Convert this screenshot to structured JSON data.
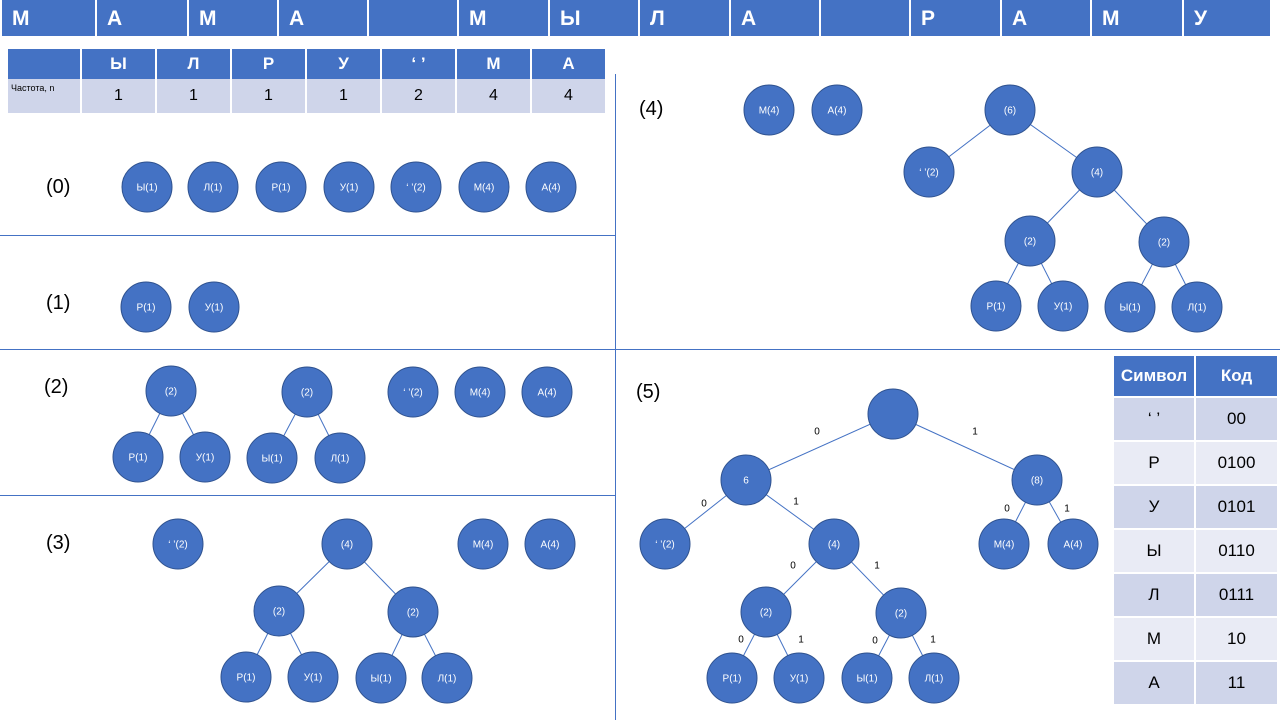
{
  "sequence": [
    "М",
    "А",
    "М",
    "А",
    "",
    "М",
    "Ы",
    "Л",
    "А",
    "",
    "Р",
    "А",
    "М",
    "У"
  ],
  "freq_table": {
    "header": [
      "",
      "Ы",
      "Л",
      "Р",
      "У",
      "‘ ’",
      "М",
      "А"
    ],
    "row_label": "Частота, n",
    "values": [
      "1",
      "1",
      "1",
      "1",
      "2",
      "4",
      "4"
    ]
  },
  "step_labels": [
    "(0)",
    "(1)",
    "(2)",
    "(3)",
    "(4)",
    "(5)"
  ],
  "steps": [
    {
      "nodes": [
        {
          "label": "Ы(1)"
        },
        {
          "label": "Л(1)"
        },
        {
          "label": "Р(1)"
        },
        {
          "label": "У(1)"
        },
        {
          "label": "‘ ’(2)"
        },
        {
          "label": "М(4)"
        },
        {
          "label": "А(4)"
        }
      ]
    },
    {
      "nodes": [
        {
          "label": "Р(1)"
        },
        {
          "label": "У(1)"
        }
      ]
    },
    {
      "nodes": [
        {
          "label": "(2)"
        },
        {
          "label": "Р(1)"
        },
        {
          "label": "У(1)"
        },
        {
          "label": "(2)"
        },
        {
          "label": "Ы(1)"
        },
        {
          "label": "Л(1)"
        },
        {
          "label": "‘ ’(2)"
        },
        {
          "label": "М(4)"
        },
        {
          "label": "А(4)"
        }
      ]
    },
    {
      "nodes": [
        {
          "label": "‘ ’(2)"
        },
        {
          "label": "(4)"
        },
        {
          "label": "М(4)"
        },
        {
          "label": "А(4)"
        },
        {
          "label": "(2)"
        },
        {
          "label": "(2)"
        },
        {
          "label": "Р(1)"
        },
        {
          "label": "У(1)"
        },
        {
          "label": "Ы(1)"
        },
        {
          "label": "Л(1)"
        }
      ]
    },
    {
      "nodes": [
        {
          "label": "М(4)"
        },
        {
          "label": "А(4)"
        },
        {
          "label": "(6)"
        },
        {
          "label": "‘ ’(2)"
        },
        {
          "label": "(4)"
        },
        {
          "label": "(2)"
        },
        {
          "label": "(2)"
        },
        {
          "label": "Р(1)"
        },
        {
          "label": "У(1)"
        },
        {
          "label": "Ы(1)"
        },
        {
          "label": "Л(1)"
        }
      ]
    },
    {
      "nodes": [
        {
          "label": ""
        },
        {
          "label": "6"
        },
        {
          "label": "(8)"
        },
        {
          "label": "‘ ’(2)"
        },
        {
          "label": "(4)"
        },
        {
          "label": "М(4)"
        },
        {
          "label": "А(4)"
        },
        {
          "label": "(2)"
        },
        {
          "label": "(2)"
        },
        {
          "label": "Р(1)"
        },
        {
          "label": "У(1)"
        },
        {
          "label": "Ы(1)"
        },
        {
          "label": "Л(1)"
        }
      ],
      "edge_labels": [
        "0",
        "1",
        "0",
        "1",
        "0",
        "1",
        "0",
        "1",
        "0",
        "1",
        "0",
        "1"
      ]
    }
  ],
  "code_table": {
    "headers": [
      "Символ",
      "Код"
    ],
    "rows": [
      [
        "‘ ’",
        "00"
      ],
      [
        "Р",
        "0100"
      ],
      [
        "У",
        "0101"
      ],
      [
        "Ы",
        "0110"
      ],
      [
        "Л",
        "0111"
      ],
      [
        "М",
        "10"
      ],
      [
        "А",
        "11"
      ]
    ]
  },
  "colors": {
    "node": "#4472c4",
    "node_border": "#2f528f",
    "edge": "#4472c4"
  },
  "icons": {
    "node": "circle"
  }
}
